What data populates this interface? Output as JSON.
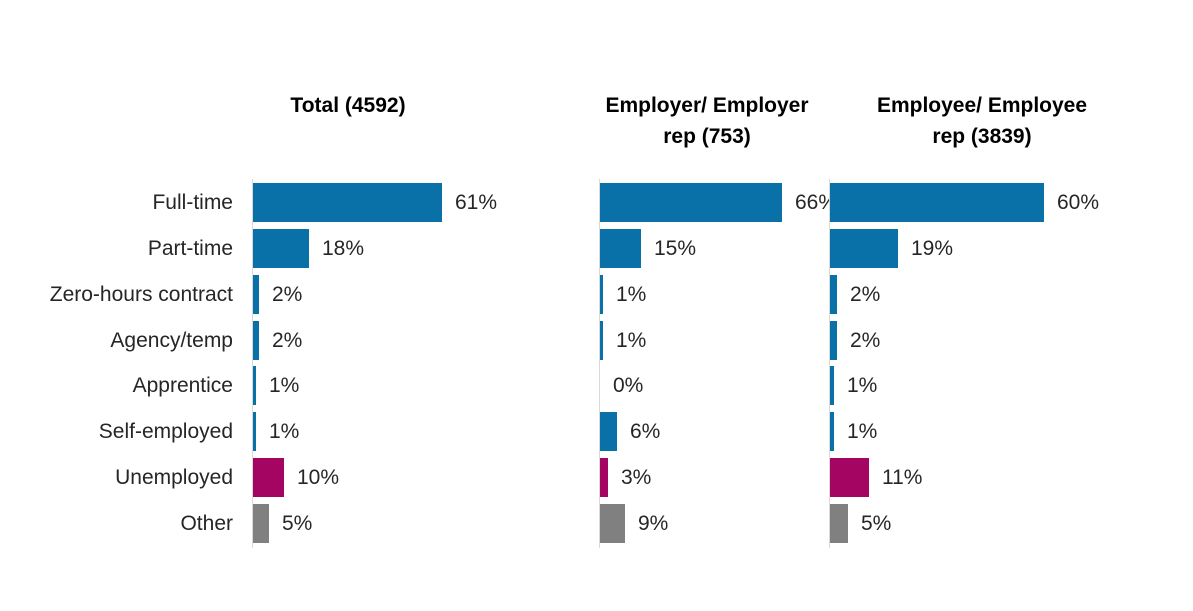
{
  "page": {
    "background_color": "#ffffff"
  },
  "chart_data": {
    "type": "bar",
    "orientation": "horizontal",
    "value_unit": "%",
    "gridlines": false,
    "legend": "none",
    "value_label_position": "outside-end",
    "categories": [
      "Full-time",
      "Part-time",
      "Zero-hours contract",
      "Agency/temp",
      "Apprentice",
      "Self-employed",
      "Unemployed",
      "Other"
    ],
    "category_slugs": [
      "full-time",
      "part-time",
      "zero-hours-contract",
      "agency-temp",
      "apprentice",
      "self-employed",
      "unemployed",
      "other"
    ],
    "headers": [
      {
        "lines": [
          "Total (4592)"
        ]
      },
      {
        "lines": [
          "Employer/ Employer",
          "rep (753)"
        ]
      },
      {
        "lines": [
          "Employee/ Employee",
          "rep (3839)"
        ]
      }
    ],
    "series": [
      {
        "name": "Total (4592)",
        "values": [
          61,
          18,
          2,
          2,
          1,
          1,
          10,
          5
        ],
        "labels": [
          "61%",
          "18%",
          "2%",
          "2%",
          "1%",
          "1%",
          "10%",
          "5%"
        ]
      },
      {
        "name": "Employer/ Employer rep (753)",
        "values": [
          66,
          15,
          1,
          1,
          0,
          6,
          3,
          9
        ],
        "labels": [
          "66%",
          "15%",
          "1%",
          "1%",
          "0%",
          "6%",
          "3%",
          "9%"
        ]
      },
      {
        "name": "Employee/ Employee rep (3839)",
        "values": [
          60,
          19,
          2,
          2,
          1,
          1,
          11,
          5
        ],
        "labels": [
          "60%",
          "19%",
          "2%",
          "2%",
          "1%",
          "1%",
          "11%",
          "5%"
        ]
      }
    ],
    "bar_colors": [
      "#0971a8",
      "#0971a8",
      "#0971a8",
      "#0971a8",
      "#0971a8",
      "#0971a8",
      "#a40563",
      "#808080"
    ],
    "colors": {
      "bar_default": "#0971a8",
      "bar_unemployed": "#a40563",
      "bar_other": "#808080",
      "axis_line": "#d9d9d9",
      "label_text": "#262626",
      "header_text": "#000000"
    }
  }
}
